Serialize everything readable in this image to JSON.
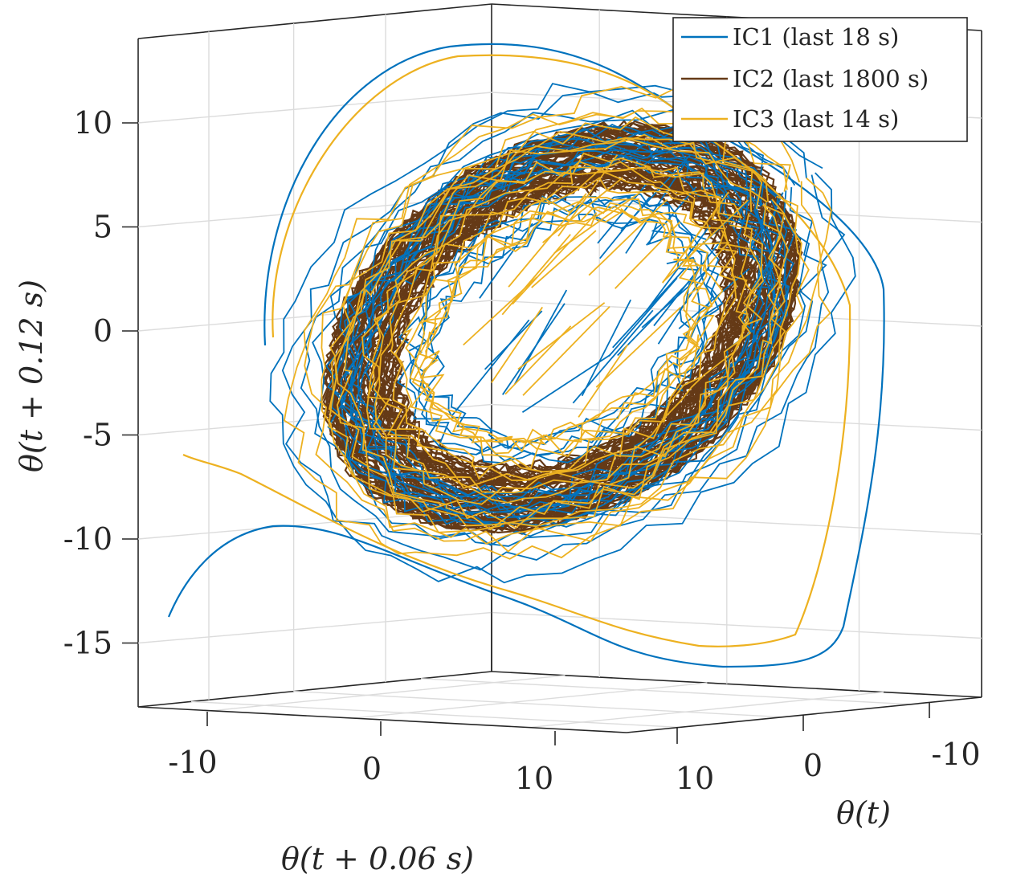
{
  "chart_data": {
    "type": "line",
    "projection": "3d-delay-embedding",
    "title": "",
    "axes": {
      "x": {
        "label": "θ(t + 0.06 s)",
        "ticks": [
          "-10",
          "0",
          "10"
        ],
        "range": [
          -15,
          15
        ]
      },
      "y": {
        "label": "θ(t)",
        "ticks": [
          "10",
          "0",
          "-10"
        ],
        "range": [
          -15,
          15
        ]
      },
      "z": {
        "label": "θ(t + 0.12 s)",
        "ticks": [
          "10",
          "5",
          "0",
          "-5",
          "-10",
          "-15"
        ],
        "range": [
          -18,
          14
        ]
      }
    },
    "grid": true,
    "legend": {
      "position": "top-right"
    },
    "series": [
      {
        "name": "IC1 (last 18 s)",
        "color": "#0072BD",
        "window_s": 18
      },
      {
        "name": "IC2 (last 1800 s)",
        "color": "#653A17",
        "window_s": 1800
      },
      {
        "name": "IC3 (last 14 s)",
        "color": "#EDB120",
        "window_s": 14
      }
    ]
  }
}
